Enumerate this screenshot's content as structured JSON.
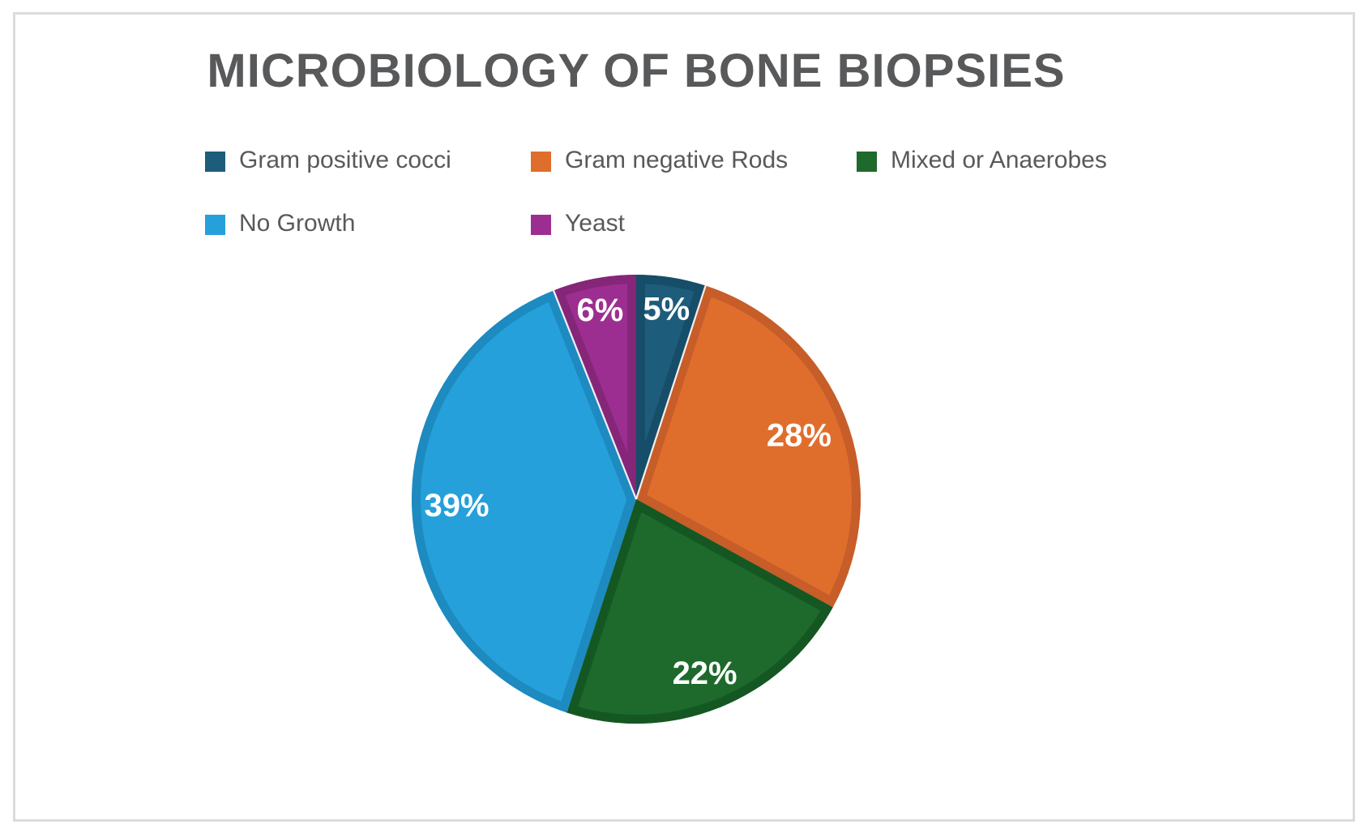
{
  "page": {
    "background": "#ffffff",
    "frame_border_color": "#dcdcdc"
  },
  "chart_data": {
    "type": "pie",
    "title": "MICROBIOLOGY OF BONE BIOPSIES",
    "title_color": "#58595B",
    "categories": [
      "Gram positive cocci",
      "Gram negative Rods",
      "Mixed or Anaerobes",
      "No Growth",
      "Yeast"
    ],
    "values": [
      5,
      28,
      22,
      39,
      6
    ],
    "slice_labels": [
      "5%",
      "28%",
      "22%",
      "39%",
      "6%"
    ],
    "colors": [
      "#1E5C7B",
      "#DF6E2D",
      "#1D6A2C",
      "#25A0DA",
      "#9D2E91"
    ],
    "edge_colors": [
      "#164D68",
      "#C75D29",
      "#155722",
      "#1D8AC0",
      "#852678"
    ],
    "slice_label_color": "#FFFFFF",
    "legend_text_color": "#58595B",
    "start_angle_deg": 0,
    "direction": "clockwise",
    "label_radius_factors": [
      0.86,
      0.78,
      0.83,
      0.8,
      0.86
    ],
    "separator_angles_deg": [
      18,
      338.4
    ],
    "legend_position": "top, two rows of three columns",
    "grid": "off",
    "axes": "none"
  }
}
